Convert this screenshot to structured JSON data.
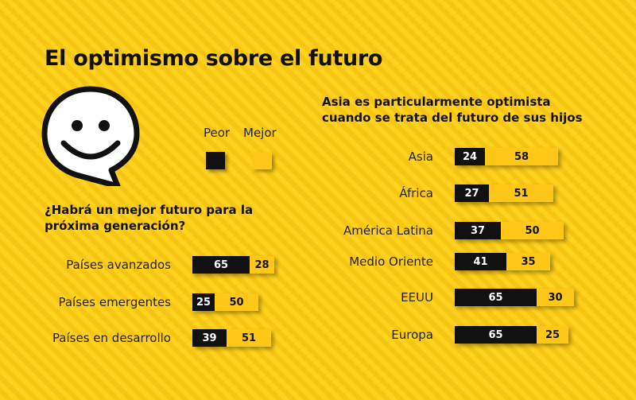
{
  "title": "El optimismo sobre el futuro",
  "legend": {
    "peor_label": "Peor",
    "mejor_label": "Mejor",
    "peor_color": "#111111",
    "mejor_color": "#ffc718"
  },
  "icon": "smiley-speech-bubble-icon",
  "chart_data": [
    {
      "type": "bar",
      "title": "¿Habrá un mejor futuro para la próxima generación?",
      "categories": [
        "Países avanzados",
        "Países emergentes",
        "Países en desarrollo"
      ],
      "series": [
        {
          "name": "Peor",
          "values": [
            65,
            25,
            39
          ]
        },
        {
          "name": "Mejor",
          "values": [
            28,
            50,
            51
          ]
        }
      ],
      "orientation": "horizontal-stacked"
    },
    {
      "type": "bar",
      "title": "Asia es particularmente optimista cuando se trata del futuro de sus hijos",
      "categories": [
        "Asia",
        "África",
        "América Latina",
        "Medio Oriente",
        "EEUU",
        "Europa"
      ],
      "series": [
        {
          "name": "Peor",
          "values": [
            24,
            27,
            37,
            41,
            65,
            65
          ]
        },
        {
          "name": "Mejor",
          "values": [
            58,
            51,
            50,
            35,
            30,
            25
          ]
        }
      ],
      "orientation": "horizontal-stacked"
    }
  ]
}
